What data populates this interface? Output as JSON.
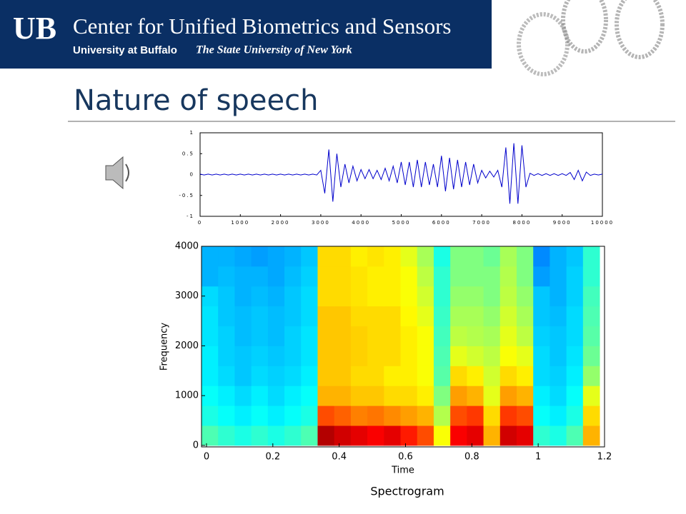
{
  "header": {
    "logo": "UB",
    "title": "Center for Unified Biometrics and Sensors",
    "university": "University at Buffalo",
    "tagline": "The State University of New York"
  },
  "slide_title": "Nature of speech",
  "caption": "Spectrogram",
  "chart_data": [
    {
      "type": "line",
      "color": "#0000cc",
      "x": [
        0,
        100,
        200,
        300,
        400,
        500,
        600,
        700,
        800,
        900,
        1000,
        1100,
        1200,
        1300,
        1400,
        1500,
        1600,
        1700,
        1800,
        1900,
        2000,
        2100,
        2200,
        2300,
        2400,
        2500,
        2600,
        2700,
        2800,
        2900,
        3000,
        3100,
        3200,
        3300,
        3400,
        3500,
        3600,
        3700,
        3800,
        3900,
        4000,
        4100,
        4200,
        4300,
        4400,
        4500,
        4600,
        4700,
        4800,
        4900,
        5000,
        5100,
        5200,
        5300,
        5400,
        5500,
        5600,
        5700,
        5800,
        5900,
        6000,
        6100,
        6200,
        6300,
        6400,
        6500,
        6600,
        6700,
        6800,
        6900,
        7000,
        7100,
        7200,
        7300,
        7400,
        7500,
        7600,
        7700,
        7800,
        7900,
        8000,
        8100,
        8200,
        8300,
        8400,
        8500,
        8600,
        8700,
        8800,
        8900,
        9000,
        9100,
        9200,
        9300,
        9400,
        9500,
        9600,
        9700,
        9800,
        9900,
        10000
      ],
      "values": [
        0.01,
        -0.01,
        0.01,
        -0.01,
        0.01,
        -0.01,
        0.01,
        -0.01,
        0.01,
        -0.01,
        0.01,
        -0.01,
        0.01,
        -0.01,
        0.01,
        -0.01,
        0.01,
        -0.01,
        0.01,
        -0.01,
        0.01,
        -0.01,
        0.01,
        -0.01,
        0.01,
        -0.01,
        0.01,
        -0.01,
        0.01,
        -0.01,
        0.1,
        -0.45,
        0.6,
        -0.65,
        0.5,
        -0.3,
        0.25,
        -0.2,
        0.2,
        -0.15,
        0.12,
        -0.1,
        0.12,
        -0.1,
        0.1,
        -0.12,
        0.15,
        -0.15,
        0.2,
        -0.2,
        0.3,
        -0.25,
        0.3,
        -0.3,
        0.35,
        -0.3,
        0.3,
        -0.25,
        0.25,
        -0.3,
        0.45,
        -0.4,
        0.4,
        -0.35,
        0.35,
        -0.3,
        0.3,
        -0.25,
        0.25,
        -0.2,
        0.1,
        -0.08,
        0.08,
        -0.06,
        0.1,
        -0.3,
        0.65,
        -0.7,
        0.75,
        -0.7,
        0.7,
        -0.3,
        0.03,
        -0.02,
        0.02,
        -0.02,
        0.02,
        -0.02,
        0.02,
        -0.02,
        0.02,
        -0.02,
        0.05,
        -0.12,
        0.1,
        -0.15,
        0.06,
        -0.02,
        0.01,
        -0.01,
        0.01
      ],
      "xlim": [
        0,
        10000
      ],
      "xticks": [
        0,
        1000,
        2000,
        3000,
        4000,
        5000,
        6000,
        7000,
        8000,
        9000,
        10000
      ],
      "ylim": [
        -1,
        1
      ],
      "yticks": [
        -1,
        -0.5,
        0,
        0.5,
        1
      ]
    },
    {
      "type": "heatmap",
      "colormap": "jet",
      "x_label": "Time",
      "y_label": "Frequency",
      "x": [
        0.01,
        0.06,
        0.11,
        0.16,
        0.21,
        0.26,
        0.31,
        0.36,
        0.41,
        0.46,
        0.51,
        0.56,
        0.61,
        0.66,
        0.71,
        0.76,
        0.81,
        0.86,
        0.91,
        0.96,
        1.01,
        1.06,
        1.11,
        1.16
      ],
      "y": [
        200,
        600,
        1000,
        1400,
        1800,
        2200,
        2600,
        3000,
        3400,
        3800
      ],
      "z": [
        [
          0.45,
          0.42,
          0.4,
          0.42,
          0.4,
          0.42,
          0.45,
          0.95,
          0.92,
          0.9,
          0.88,
          0.9,
          0.85,
          0.8,
          0.62,
          0.88,
          0.9,
          0.7,
          0.92,
          0.9,
          0.42,
          0.4,
          0.45,
          0.7
        ],
        [
          0.4,
          0.38,
          0.36,
          0.38,
          0.36,
          0.38,
          0.4,
          0.8,
          0.78,
          0.75,
          0.76,
          0.74,
          0.72,
          0.7,
          0.55,
          0.8,
          0.82,
          0.66,
          0.82,
          0.8,
          0.38,
          0.36,
          0.4,
          0.66
        ],
        [
          0.38,
          0.36,
          0.34,
          0.36,
          0.34,
          0.36,
          0.38,
          0.7,
          0.7,
          0.68,
          0.68,
          0.66,
          0.66,
          0.64,
          0.5,
          0.72,
          0.7,
          0.6,
          0.72,
          0.7,
          0.36,
          0.34,
          0.38,
          0.6
        ],
        [
          0.36,
          0.34,
          0.32,
          0.34,
          0.33,
          0.34,
          0.36,
          0.68,
          0.68,
          0.66,
          0.66,
          0.64,
          0.64,
          0.62,
          0.46,
          0.66,
          0.64,
          0.58,
          0.66,
          0.64,
          0.34,
          0.33,
          0.36,
          0.52
        ],
        [
          0.36,
          0.33,
          0.32,
          0.33,
          0.32,
          0.33,
          0.35,
          0.68,
          0.68,
          0.67,
          0.66,
          0.66,
          0.64,
          0.62,
          0.45,
          0.6,
          0.58,
          0.56,
          0.62,
          0.6,
          0.34,
          0.32,
          0.35,
          0.48
        ],
        [
          0.35,
          0.33,
          0.31,
          0.32,
          0.31,
          0.33,
          0.35,
          0.68,
          0.68,
          0.67,
          0.66,
          0.66,
          0.64,
          0.62,
          0.44,
          0.56,
          0.55,
          0.54,
          0.6,
          0.56,
          0.33,
          0.32,
          0.34,
          0.46
        ],
        [
          0.35,
          0.32,
          0.31,
          0.32,
          0.31,
          0.32,
          0.34,
          0.68,
          0.68,
          0.66,
          0.66,
          0.66,
          0.63,
          0.6,
          0.43,
          0.54,
          0.54,
          0.52,
          0.58,
          0.54,
          0.32,
          0.31,
          0.34,
          0.45
        ],
        [
          0.34,
          0.32,
          0.3,
          0.31,
          0.3,
          0.32,
          0.34,
          0.66,
          0.66,
          0.65,
          0.64,
          0.64,
          0.62,
          0.58,
          0.42,
          0.52,
          0.52,
          0.5,
          0.56,
          0.52,
          0.32,
          0.3,
          0.33,
          0.44
        ],
        [
          0.3,
          0.31,
          0.3,
          0.3,
          0.29,
          0.31,
          0.33,
          0.66,
          0.66,
          0.65,
          0.64,
          0.64,
          0.62,
          0.56,
          0.42,
          0.5,
          0.5,
          0.5,
          0.55,
          0.5,
          0.28,
          0.3,
          0.33,
          0.42
        ],
        [
          0.3,
          0.3,
          0.29,
          0.28,
          0.29,
          0.3,
          0.32,
          0.66,
          0.66,
          0.64,
          0.65,
          0.64,
          0.6,
          0.54,
          0.4,
          0.5,
          0.5,
          0.48,
          0.54,
          0.5,
          0.26,
          0.3,
          0.32,
          0.42
        ]
      ],
      "xlim": [
        -0.015,
        1.2
      ],
      "xticks": [
        0,
        0.2,
        0.4,
        0.6,
        0.8,
        1,
        1.2
      ],
      "ylim": [
        -30,
        4000
      ],
      "yticks": [
        0,
        1000,
        2000,
        3000,
        4000
      ]
    }
  ]
}
